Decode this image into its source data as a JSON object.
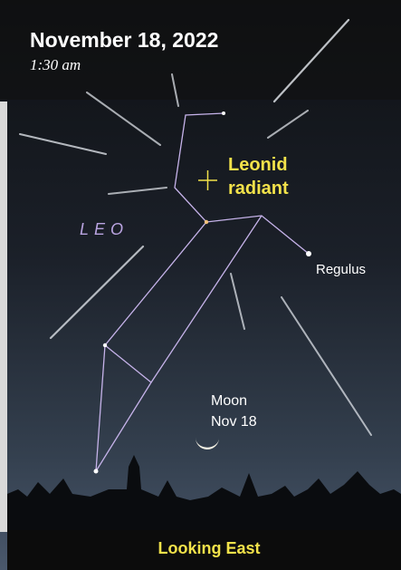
{
  "header": {
    "title": "November 18, 2022",
    "time": "1:30 am"
  },
  "radiant": {
    "lines": [
      "Leonid",
      "radiant"
    ]
  },
  "constellation": "LEO",
  "star": "Regulus",
  "moon": {
    "lines": [
      "Moon",
      "Nov 18"
    ]
  },
  "footer": "Looking East"
}
